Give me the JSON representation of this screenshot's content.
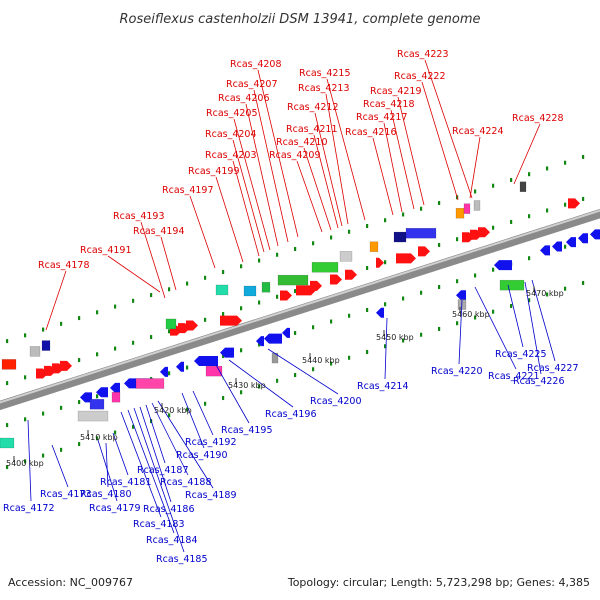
{
  "title": "Roseiflexus castenholzii DSM 13941, complete genome",
  "footer": {
    "accession": "Accession: NC_009767",
    "summary": "Topology: circular; Length: 5,723,298 bp; Genes: 4,385"
  },
  "colors": {
    "forward_label": "#dd0000",
    "reverse_label": "#0000cc",
    "forward_gene": "#ff1111",
    "reverse_gene": "#1111ee",
    "tick": "#118811",
    "backbone": "#8a8a8a"
  },
  "ruler": [
    "5400 kbp",
    "5410 kbp",
    "5420 kbp",
    "5430 kbp",
    "5440 kbp",
    "5450 kbp",
    "5460 kbp",
    "5470 kbp"
  ],
  "forward_labels": [
    "Rcas_4178",
    "Rcas_4191",
    "Rcas_4193",
    "Rcas_4194",
    "Rcas_4197",
    "Rcas_4199",
    "Rcas_4203",
    "Rcas_4204",
    "Rcas_4205",
    "Rcas_4206",
    "Rcas_4207",
    "Rcas_4208",
    "Rcas_4209",
    "Rcas_4210",
    "Rcas_4211",
    "Rcas_4212",
    "Rcas_4213",
    "Rcas_4215",
    "Rcas_4216",
    "Rcas_4217",
    "Rcas_4218",
    "Rcas_4219",
    "Rcas_4222",
    "Rcas_4223",
    "Rcas_4224",
    "Rcas_4228"
  ],
  "reverse_labels": [
    "Rcas_4172",
    "Rcas_4173",
    "Rcas_4179",
    "Rcas_4180",
    "Rcas_4181",
    "Rcas_4183",
    "Rcas_4184",
    "Rcas_4185",
    "Rcas_4186",
    "Rcas_4187",
    "Rcas_4188",
    "Rcas_4189",
    "Rcas_4190",
    "Rcas_4192",
    "Rcas_4195",
    "Rcas_4196",
    "Rcas_4200",
    "Rcas_4214",
    "Rcas_4220",
    "Rcas_4221",
    "Rcas_4225",
    "Rcas_4226",
    "Rcas_4227"
  ]
}
